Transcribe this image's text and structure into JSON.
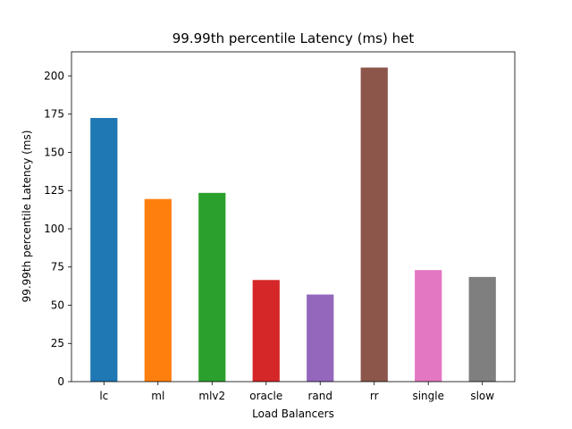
{
  "chart_data": {
    "type": "bar",
    "title": "99.99th percentile Latency (ms) het",
    "xlabel": "Load Balancers",
    "ylabel": "99.99th percentile Latency (ms)",
    "categories": [
      "lc",
      "ml",
      "mlv2",
      "oracle",
      "rand",
      "rr",
      "single",
      "slow"
    ],
    "values": [
      172.5,
      119.5,
      123.5,
      66.5,
      57.0,
      205.5,
      73.0,
      68.5
    ],
    "colors": [
      "#1f77b4",
      "#ff7f0e",
      "#2ca02c",
      "#d62728",
      "#9467bd",
      "#8c564b",
      "#e377c2",
      "#7f7f7f"
    ],
    "ylim": [
      0,
      215.78
    ],
    "yticks": [
      0,
      25,
      50,
      75,
      100,
      125,
      150,
      175,
      200
    ],
    "grid": false,
    "legend": "none"
  }
}
